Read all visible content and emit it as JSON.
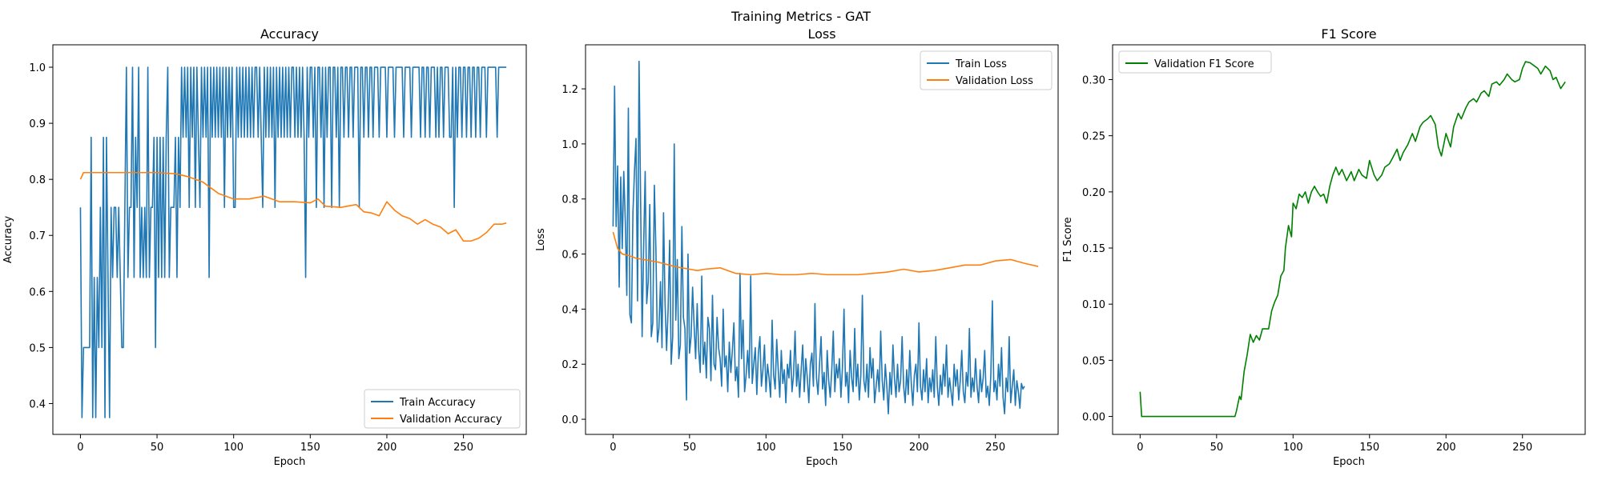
{
  "figure": {
    "suptitle": "Training Metrics - GAT"
  },
  "chart_data": [
    {
      "type": "line",
      "title": "Accuracy",
      "xlabel": "Epoch",
      "ylabel": "Accuracy",
      "xlim": [
        -18,
        291
      ],
      "ylim": [
        0.345,
        1.04
      ],
      "xticks": [
        0,
        50,
        100,
        150,
        200,
        250
      ],
      "yticks": [
        0.4,
        0.5,
        0.6,
        0.7,
        0.8,
        0.9,
        1.0
      ],
      "ytick_labels": [
        "0.4",
        "0.5",
        "0.6",
        "0.7",
        "0.8",
        "0.9",
        "1.0"
      ],
      "grid": false,
      "legend_position": "lower-right",
      "series": [
        {
          "name": "Train Accuracy",
          "color": "#1f77b4",
          "values": [
            0.75,
            0.375,
            0.5,
            0.5,
            0.5,
            0.5,
            0.5,
            0.875,
            0.375,
            0.625,
            0.375,
            0.625,
            0.5,
            0.75,
            0.5,
            0.875,
            0.375,
            0.875,
            0.625,
            0.375,
            0.75,
            0.625,
            0.75,
            0.75,
            0.625,
            0.75,
            0.625,
            0.5,
            0.5,
            0.75,
            1.0,
            0.625,
            0.75,
            0.75,
            1.0,
            0.625,
            0.875,
            0.75,
            1.0,
            0.625,
            0.75,
            0.625,
            0.75,
            0.625,
            1.0,
            0.625,
            0.75,
            0.75,
            0.875,
            0.5,
            0.875,
            0.625,
            0.875,
            0.625,
            0.875,
            0.625,
            0.875,
            1.0,
            0.625,
            0.75,
            0.75,
            0.75,
            0.875,
            0.625,
            0.875,
            0.75,
            1.0,
            0.875,
            1.0,
            0.875,
            1.0,
            0.75,
            1.0,
            0.875,
            1.0,
            0.75,
            1.0,
            0.875,
            0.75,
            1.0,
            0.875,
            1.0,
            0.875,
            1.0,
            0.625,
            1.0,
            0.875,
            1.0,
            0.875,
            1.0,
            0.875,
            1.0,
            0.875,
            1.0,
            0.75,
            1.0,
            0.875,
            1.0,
            0.875,
            1.0,
            0.75,
            0.75,
            1.0,
            0.875,
            1.0,
            0.875,
            1.0,
            0.875,
            1.0,
            0.875,
            1.0,
            0.875,
            1.0,
            0.875,
            1.0,
            1.0,
            0.875,
            1.0,
            0.875,
            0.75,
            1.0,
            0.875,
            1.0,
            0.875,
            1.0,
            0.875,
            1.0,
            0.75,
            1.0,
            0.875,
            1.0,
            0.875,
            1.0,
            0.875,
            1.0,
            0.875,
            1.0,
            0.875,
            1.0,
            1.0,
            0.875,
            1.0,
            0.875,
            1.0,
            0.875,
            1.0,
            0.875,
            0.625,
            1.0,
            0.875,
            1.0,
            1.0,
            0.875,
            1.0,
            0.75,
            1.0,
            1.0,
            0.875,
            1.0,
            0.75,
            1.0,
            0.875,
            1.0,
            1.0,
            0.75,
            1.0,
            1.0,
            0.875,
            1.0,
            0.75,
            1.0,
            1.0,
            0.875,
            1.0,
            1.0,
            0.875,
            1.0,
            1.0,
            0.875,
            1.0,
            1.0,
            1.0,
            0.75,
            1.0,
            1.0,
            0.875,
            1.0,
            1.0,
            0.875,
            1.0,
            1.0,
            0.875,
            1.0,
            1.0,
            1.0,
            0.875,
            1.0,
            1.0,
            1.0,
            1.0,
            0.875,
            1.0,
            1.0,
            1.0,
            1.0,
            0.875,
            1.0,
            1.0,
            1.0,
            1.0,
            1.0,
            0.875,
            1.0,
            1.0,
            1.0,
            1.0,
            0.875,
            1.0,
            1.0,
            1.0,
            1.0,
            1.0,
            0.875,
            1.0,
            1.0,
            0.875,
            1.0,
            1.0,
            0.875,
            1.0,
            1.0,
            1.0,
            0.875,
            1.0,
            0.875,
            1.0,
            1.0,
            0.875,
            1.0,
            1.0,
            1.0,
            0.875,
            0.875,
            1.0,
            0.75,
            1.0,
            0.875,
            1.0,
            1.0,
            0.875,
            1.0,
            1.0,
            0.875,
            1.0,
            1.0,
            0.875,
            1.0,
            1.0,
            0.875,
            1.0,
            1.0,
            0.875,
            1.0,
            1.0,
            1.0,
            0.875,
            1.0,
            1.0,
            1.0,
            1.0,
            1.0,
            1.0,
            0.875,
            1.0,
            1.0,
            1.0,
            1.0,
            1.0,
            1.0
          ]
        },
        {
          "name": "Validation Accuracy",
          "color": "#ff7f0e",
          "x": [
            0,
            2,
            10,
            30,
            50,
            62,
            70,
            75,
            80,
            85,
            90,
            100,
            110,
            120,
            130,
            140,
            150,
            155,
            160,
            170,
            180,
            185,
            190,
            195,
            200,
            205,
            210,
            215,
            220,
            225,
            230,
            235,
            240,
            245,
            250,
            255,
            260,
            265,
            270,
            275,
            278
          ],
          "y": [
            0.8,
            0.812,
            0.812,
            0.812,
            0.812,
            0.81,
            0.805,
            0.8,
            0.795,
            0.785,
            0.775,
            0.765,
            0.765,
            0.77,
            0.76,
            0.76,
            0.758,
            0.765,
            0.752,
            0.75,
            0.755,
            0.742,
            0.74,
            0.735,
            0.76,
            0.745,
            0.735,
            0.73,
            0.72,
            0.728,
            0.72,
            0.715,
            0.703,
            0.71,
            0.69,
            0.69,
            0.695,
            0.705,
            0.72,
            0.72,
            0.722
          ]
        }
      ]
    },
    {
      "type": "line",
      "title": "Loss",
      "xlabel": "Epoch",
      "ylabel": "Loss",
      "xlim": [
        -18,
        291
      ],
      "ylim": [
        -0.055,
        1.36
      ],
      "xticks": [
        0,
        50,
        100,
        150,
        200,
        250
      ],
      "yticks": [
        0.0,
        0.2,
        0.4,
        0.6,
        0.8,
        1.0,
        1.2
      ],
      "ytick_labels": [
        "0.0",
        "0.2",
        "0.4",
        "0.6",
        "0.8",
        "1.0",
        "1.2"
      ],
      "grid": false,
      "legend_position": "top-right",
      "series": [
        {
          "name": "Train Loss",
          "color": "#1f77b4",
          "values": [
            0.7,
            1.21,
            0.7,
            0.92,
            0.48,
            0.88,
            0.62,
            0.9,
            0.72,
            0.45,
            1.13,
            0.38,
            0.35,
            0.75,
            0.9,
            1.02,
            0.43,
            1.3,
            0.8,
            0.3,
            0.63,
            0.9,
            0.42,
            0.5,
            0.78,
            0.3,
            0.35,
            0.85,
            0.62,
            0.28,
            0.33,
            0.5,
            0.26,
            0.75,
            0.42,
            0.25,
            0.4,
            0.65,
            0.2,
            0.3,
            1.0,
            0.36,
            0.58,
            0.22,
            0.27,
            0.7,
            0.37,
            0.33,
            0.07,
            0.6,
            0.24,
            0.3,
            0.48,
            0.34,
            0.22,
            0.42,
            0.25,
            0.17,
            0.52,
            0.2,
            0.28,
            0.15,
            0.37,
            0.33,
            0.14,
            0.45,
            0.2,
            0.18,
            0.37,
            0.26,
            0.22,
            0.12,
            0.4,
            0.19,
            0.23,
            0.1,
            0.28,
            0.17,
            0.25,
            0.35,
            0.14,
            0.19,
            0.08,
            0.53,
            0.22,
            0.36,
            0.1,
            0.16,
            0.25,
            0.15,
            0.52,
            0.13,
            0.2,
            0.26,
            0.09,
            0.24,
            0.3,
            0.12,
            0.18,
            0.27,
            0.1,
            0.2,
            0.15,
            0.08,
            0.36,
            0.16,
            0.11,
            0.29,
            0.18,
            0.08,
            0.25,
            0.13,
            0.18,
            0.06,
            0.2,
            0.15,
            0.25,
            0.1,
            0.16,
            0.32,
            0.12,
            0.2,
            0.08,
            0.18,
            0.27,
            0.1,
            0.22,
            0.15,
            0.06,
            0.2,
            0.24,
            0.12,
            0.42,
            0.15,
            0.09,
            0.2,
            0.3,
            0.11,
            0.17,
            0.05,
            0.25,
            0.14,
            0.08,
            0.18,
            0.32,
            0.1,
            0.2,
            0.15,
            0.22,
            0.08,
            0.19,
            0.4,
            0.12,
            0.17,
            0.06,
            0.25,
            0.15,
            0.1,
            0.33,
            0.12,
            0.2,
            0.07,
            0.16,
            0.45,
            0.14,
            0.1,
            0.2,
            0.08,
            0.26,
            0.15,
            0.22,
            0.06,
            0.12,
            0.18,
            0.1,
            0.32,
            0.14,
            0.07,
            0.2,
            0.12,
            0.02,
            0.17,
            0.09,
            0.27,
            0.15,
            0.08,
            0.2,
            0.1,
            0.14,
            0.3,
            0.12,
            0.06,
            0.18,
            0.09,
            0.25,
            0.13,
            0.05,
            0.16,
            0.2,
            0.1,
            0.35,
            0.12,
            0.07,
            0.18,
            0.1,
            0.22,
            0.06,
            0.15,
            0.1,
            0.18,
            0.08,
            0.3,
            0.12,
            0.05,
            0.16,
            0.09,
            0.2,
            0.12,
            0.27,
            0.08,
            0.15,
            0.1,
            0.05,
            0.2,
            0.12,
            0.18,
            0.07,
            0.14,
            0.25,
            0.1,
            0.06,
            0.17,
            0.12,
            0.33,
            0.08,
            0.15,
            0.1,
            0.22,
            0.12,
            0.06,
            0.18,
            0.1,
            0.15,
            0.25,
            0.08,
            0.12,
            0.05,
            0.16,
            0.43,
            0.1,
            0.14,
            0.07,
            0.2,
            0.12,
            0.26,
            0.08,
            0.02,
            0.15,
            0.1,
            0.3,
            0.06,
            0.12,
            0.18,
            0.05,
            0.14,
            0.1,
            0.04,
            0.13,
            0.11,
            0.12
          ]
        },
        {
          "name": "Validation Loss",
          "color": "#ff7f0e",
          "x": [
            0,
            3,
            6,
            10,
            15,
            20,
            30,
            40,
            50,
            55,
            60,
            70,
            80,
            90,
            100,
            110,
            120,
            130,
            140,
            150,
            160,
            170,
            180,
            190,
            200,
            210,
            220,
            230,
            240,
            250,
            260,
            270,
            278
          ],
          "y": [
            0.68,
            0.62,
            0.6,
            0.595,
            0.585,
            0.58,
            0.57,
            0.555,
            0.545,
            0.54,
            0.545,
            0.55,
            0.53,
            0.525,
            0.53,
            0.525,
            0.525,
            0.53,
            0.525,
            0.525,
            0.525,
            0.53,
            0.535,
            0.545,
            0.535,
            0.54,
            0.55,
            0.56,
            0.56,
            0.575,
            0.58,
            0.565,
            0.555
          ]
        }
      ]
    },
    {
      "type": "line",
      "title": "F1 Score",
      "xlabel": "Epoch",
      "ylabel": "F1 Score",
      "xlim": [
        -18,
        291
      ],
      "ylim": [
        -0.016,
        0.331
      ],
      "xticks": [
        0,
        50,
        100,
        150,
        200,
        250
      ],
      "yticks": [
        0.0,
        0.05,
        0.1,
        0.15,
        0.2,
        0.25,
        0.3
      ],
      "ytick_labels": [
        "0.00",
        "0.05",
        "0.10",
        "0.15",
        "0.20",
        "0.25",
        "0.30"
      ],
      "grid": false,
      "legend_position": "top-left",
      "series": [
        {
          "name": "Validation F1 Score",
          "color": "#008000",
          "x": [
            0,
            1,
            10,
            62,
            63,
            65,
            66,
            68,
            70,
            72,
            74,
            76,
            78,
            80,
            84,
            86,
            88,
            90,
            92,
            94,
            95,
            97,
            99,
            100,
            102,
            104,
            106,
            108,
            110,
            112,
            114,
            116,
            118,
            120,
            122,
            124,
            126,
            128,
            130,
            132,
            135,
            138,
            140,
            143,
            145,
            148,
            150,
            153,
            155,
            158,
            160,
            163,
            165,
            168,
            170,
            172,
            175,
            178,
            180,
            183,
            185,
            188,
            190,
            193,
            195,
            197,
            200,
            203,
            205,
            208,
            210,
            213,
            215,
            218,
            220,
            223,
            225,
            228,
            230,
            233,
            235,
            238,
            240,
            243,
            245,
            248,
            250,
            252,
            255,
            258,
            260,
            262,
            265,
            268,
            270,
            272,
            275,
            278
          ],
          "y": [
            0.022,
            0.0,
            0.0,
            0.0,
            0.005,
            0.018,
            0.015,
            0.04,
            0.055,
            0.073,
            0.066,
            0.072,
            0.068,
            0.078,
            0.078,
            0.094,
            0.102,
            0.108,
            0.125,
            0.13,
            0.15,
            0.17,
            0.16,
            0.19,
            0.185,
            0.198,
            0.195,
            0.2,
            0.19,
            0.2,
            0.205,
            0.2,
            0.196,
            0.198,
            0.19,
            0.205,
            0.215,
            0.222,
            0.215,
            0.22,
            0.21,
            0.218,
            0.21,
            0.22,
            0.215,
            0.212,
            0.228,
            0.215,
            0.21,
            0.215,
            0.222,
            0.225,
            0.23,
            0.238,
            0.228,
            0.235,
            0.242,
            0.252,
            0.245,
            0.258,
            0.262,
            0.265,
            0.268,
            0.26,
            0.24,
            0.232,
            0.252,
            0.24,
            0.258,
            0.27,
            0.265,
            0.275,
            0.28,
            0.283,
            0.28,
            0.288,
            0.29,
            0.285,
            0.296,
            0.298,
            0.295,
            0.3,
            0.305,
            0.3,
            0.298,
            0.3,
            0.31,
            0.316,
            0.315,
            0.312,
            0.31,
            0.305,
            0.312,
            0.308,
            0.3,
            0.302,
            0.292,
            0.298
          ]
        }
      ]
    }
  ]
}
